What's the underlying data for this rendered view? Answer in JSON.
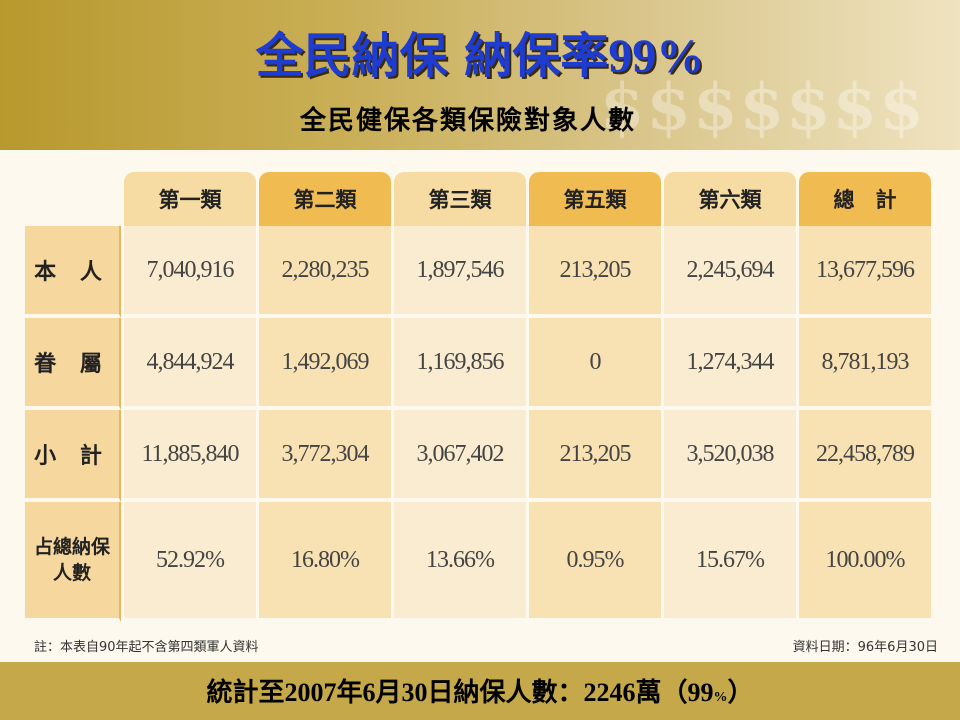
{
  "title": {
    "main": "全民納保  納保率",
    "percent": "99%"
  },
  "subtitle": "全民健保各類保險對象人數",
  "table": {
    "columns": [
      "第一類",
      "第二類",
      "第三類",
      "第五類",
      "第六類",
      "總　計"
    ],
    "rows": [
      {
        "label": "本 人",
        "values": [
          "7,040,916",
          "2,280,235",
          "1,897,546",
          "213,205",
          "2,245,694",
          "13,677,596"
        ]
      },
      {
        "label": "眷 屬",
        "values": [
          "4,844,924",
          "1,492,069",
          "1,169,856",
          "0",
          "1,274,344",
          "8,781,193"
        ]
      },
      {
        "label": "小 計",
        "values": [
          "11,885,840",
          "3,772,304",
          "3,067,402",
          "213,205",
          "3,520,038",
          "22,458,789"
        ]
      },
      {
        "label": "占總納保人數",
        "values": [
          "52.92%",
          "16.80%",
          "13.66%",
          "0.95%",
          "15.67%",
          "100.00%"
        ]
      }
    ]
  },
  "note_left": "註：本表自90年起不含第四類軍人資料",
  "note_right": "資料日期：96年6月30日",
  "footer": {
    "prefix": "統計至",
    "year": "2007",
    "yr_char": "年",
    "month": "6",
    "mo_char": "月",
    "day": "30",
    "day_text": "日納保人數：",
    "count": "2246",
    "unit": "萬（",
    "rate": "99",
    "pct": "%",
    "close": "）"
  },
  "colors": {
    "title_blue": "#1e3cd0",
    "header_light": "#f6dca2",
    "header_dark": "#f0bc52",
    "cell_light": "#faecd0",
    "cell_dark": "#f8e2b4"
  }
}
